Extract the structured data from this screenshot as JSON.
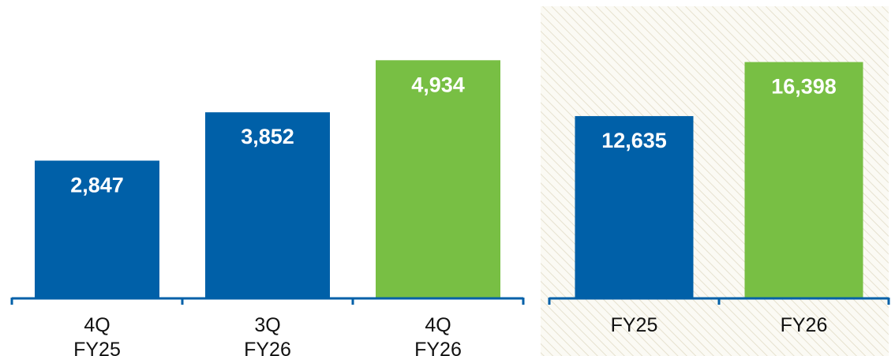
{
  "colors": {
    "prior": "#0060a8",
    "current": "#78bf44",
    "axis": "#0060a8",
    "panel_hatch_bg": "#fbfaf4",
    "panel_hatch_line": "#e6e1cf"
  },
  "chart_data": [
    {
      "type": "bar",
      "categories": [
        [
          "4Q",
          "FY25"
        ],
        [
          "3Q",
          "FY26"
        ],
        [
          "4Q",
          "FY26"
        ]
      ],
      "values": [
        2847,
        3852,
        4934
      ],
      "value_labels": [
        "2,847",
        "3,852",
        "4,934"
      ],
      "bar_colors": [
        "prior",
        "prior",
        "current"
      ],
      "ylim": [
        0,
        5300
      ],
      "grid": false,
      "title": "",
      "xlabel": "",
      "ylabel": ""
    },
    {
      "type": "bar",
      "categories": [
        [
          "FY25"
        ],
        [
          "FY26"
        ]
      ],
      "values": [
        12635,
        16398
      ],
      "value_labels": [
        "12,635",
        "16,398"
      ],
      "bar_colors": [
        "prior",
        "current"
      ],
      "ylim": [
        0,
        17750
      ],
      "grid": false,
      "background": "hatched",
      "title": "",
      "xlabel": "",
      "ylabel": ""
    }
  ]
}
